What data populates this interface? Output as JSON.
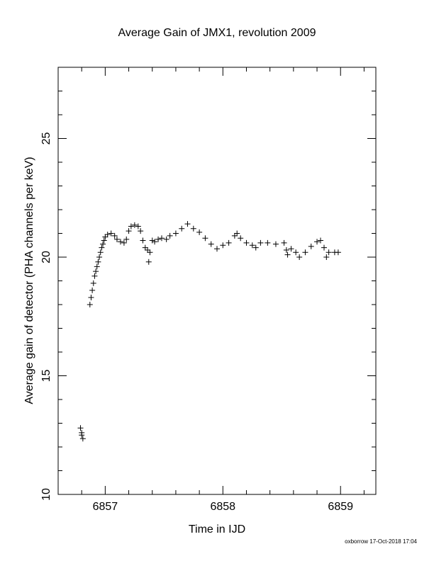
{
  "chart_data": {
    "type": "scatter",
    "title": "Average Gain of JMX1, revolution 2009",
    "x_label": "Time in IJD",
    "y_label": "Average gain of detector (PHA channels per keV)",
    "footer": "oxborrow 17-Oct-2018 17:04",
    "xlim": [
      6856.6,
      6859.3
    ],
    "ylim": [
      10,
      28
    ],
    "xticks": [
      6857,
      6858,
      6859
    ],
    "yticks": [
      10,
      15,
      20,
      25
    ],
    "xminorticks": [
      6856.8,
      6857.2,
      6857.4,
      6857.6,
      6857.8,
      6858.2,
      6858.4,
      6858.6,
      6858.8,
      6859.2
    ],
    "yminorticks": [
      11,
      12,
      13,
      14,
      16,
      17,
      18,
      19,
      21,
      22,
      23,
      24,
      26,
      27
    ],
    "marker": "plus",
    "color": "#000000",
    "x": [
      6856.79,
      6856.8,
      6856.8,
      6856.81,
      6856.87,
      6856.88,
      6856.89,
      6856.9,
      6856.91,
      6856.92,
      6856.93,
      6856.94,
      6856.95,
      6856.96,
      6856.97,
      6856.98,
      6856.99,
      6857.0,
      6857.02,
      6857.05,
      6857.08,
      6857.1,
      6857.13,
      6857.16,
      6857.18,
      6857.2,
      6857.22,
      6857.25,
      6857.28,
      6857.3,
      6857.32,
      6857.34,
      6857.36,
      6857.37,
      6857.38,
      6857.4,
      6857.42,
      6857.45,
      6857.48,
      6857.52,
      6857.55,
      6857.6,
      6857.65,
      6857.7,
      6857.75,
      6857.8,
      6857.85,
      6857.9,
      6857.95,
      6858.0,
      6858.05,
      6858.1,
      6858.12,
      6858.15,
      6858.2,
      6858.25,
      6858.28,
      6858.32,
      6858.38,
      6858.45,
      6858.52,
      6858.54,
      6858.55,
      6858.58,
      6858.62,
      6858.65,
      6858.7,
      6858.75,
      6858.8,
      6858.83,
      6858.86,
      6858.88,
      6858.9,
      6858.95,
      6858.98
    ],
    "y": [
      12.8,
      12.6,
      12.5,
      12.35,
      18.0,
      18.3,
      18.6,
      18.9,
      19.2,
      19.4,
      19.6,
      19.8,
      20.0,
      20.2,
      20.4,
      20.55,
      20.7,
      20.85,
      20.95,
      21.0,
      20.9,
      20.75,
      20.65,
      20.6,
      20.75,
      21.1,
      21.3,
      21.35,
      21.3,
      21.1,
      20.7,
      20.4,
      20.3,
      19.8,
      20.2,
      20.7,
      20.65,
      20.75,
      20.8,
      20.75,
      20.9,
      21.0,
      21.2,
      21.4,
      21.2,
      21.05,
      20.8,
      20.55,
      20.35,
      20.5,
      20.6,
      20.9,
      21.0,
      20.8,
      20.6,
      20.5,
      20.4,
      20.6,
      20.6,
      20.55,
      20.6,
      20.3,
      20.1,
      20.35,
      20.2,
      20.0,
      20.2,
      20.45,
      20.65,
      20.7,
      20.4,
      20.0,
      20.2,
      20.2,
      20.2
    ]
  }
}
